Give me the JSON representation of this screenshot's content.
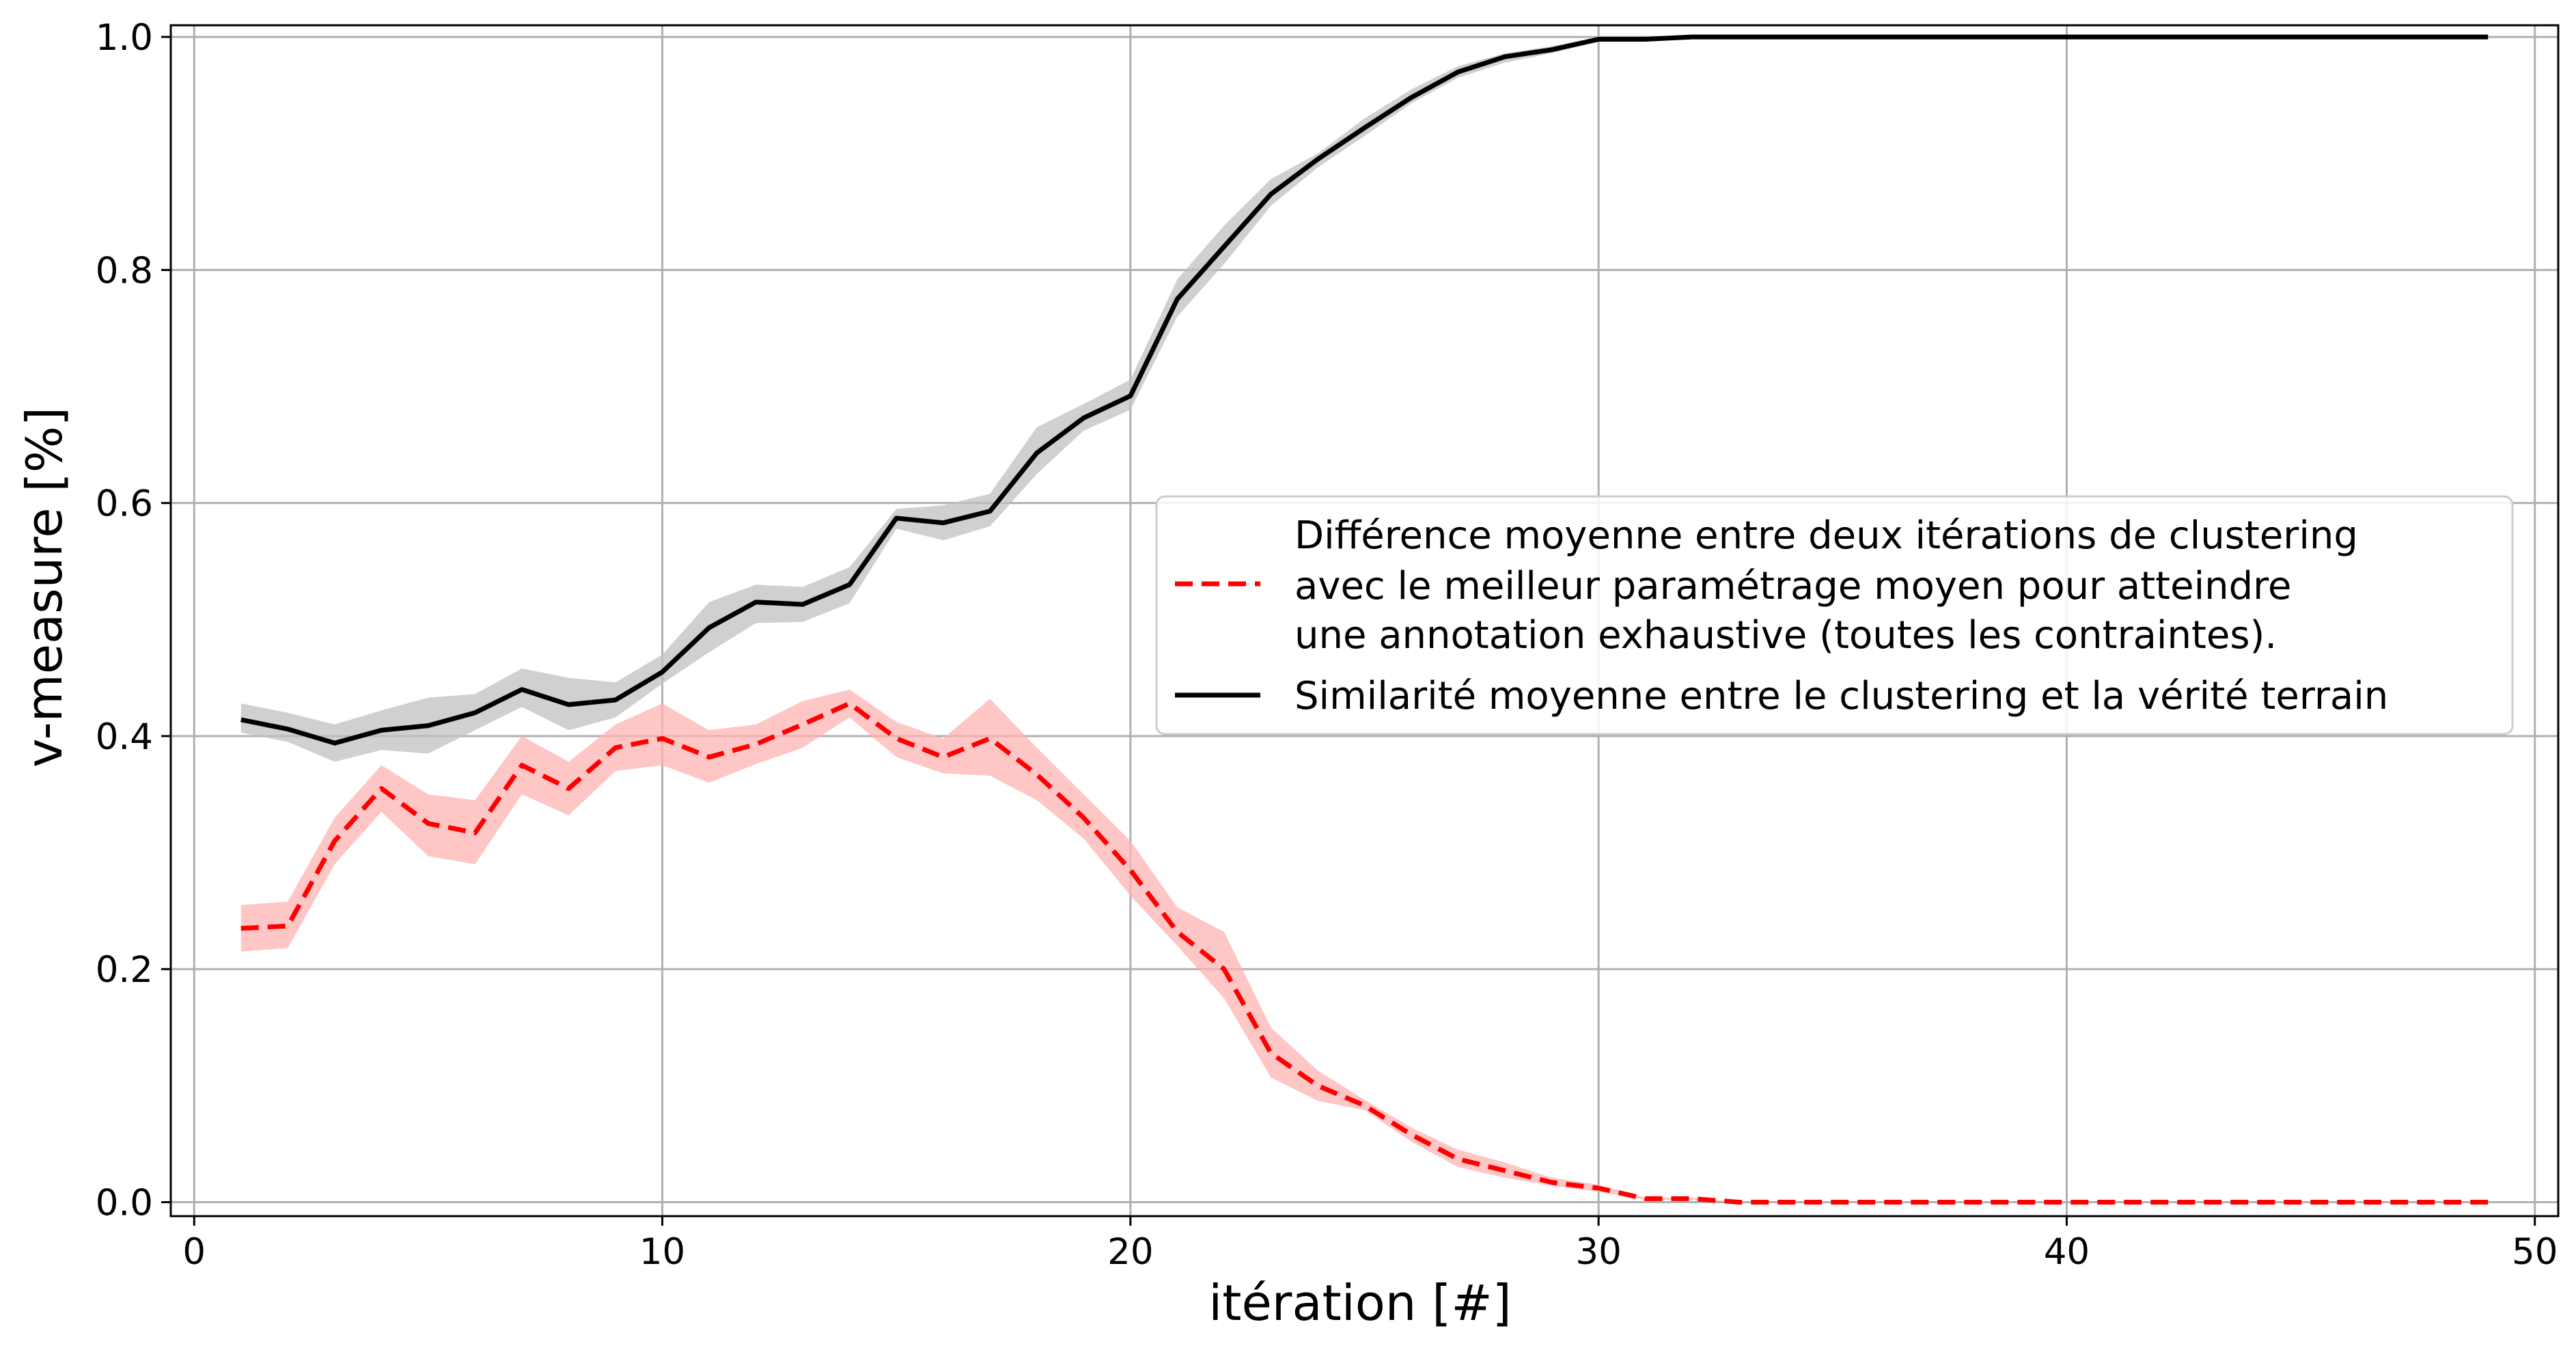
{
  "chart_data": {
    "type": "line",
    "xlabel": "itération [#]",
    "ylabel": "v-measure [%]",
    "xlim": [
      -0.5,
      50.5
    ],
    "ylim": [
      -0.012,
      1.01
    ],
    "xticks": [
      0,
      10,
      20,
      30,
      40,
      50
    ],
    "yticks": [
      0.0,
      0.2,
      0.4,
      0.6,
      0.8,
      1.0
    ],
    "xtick_labels": [
      "0",
      "10",
      "20",
      "30",
      "40",
      "50"
    ],
    "ytick_labels": [
      "0.0",
      "0.2",
      "0.4",
      "0.6",
      "0.8",
      "1.0"
    ],
    "grid": true,
    "legend_position": "center-right",
    "x": [
      1,
      2,
      3,
      4,
      5,
      6,
      7,
      8,
      9,
      10,
      11,
      12,
      13,
      14,
      15,
      16,
      17,
      18,
      19,
      20,
      21,
      22,
      23,
      24,
      25,
      26,
      27,
      28,
      29,
      30,
      31,
      32,
      33,
      34,
      35,
      36,
      37,
      38,
      39,
      40,
      41,
      42,
      43,
      44,
      45,
      46,
      47,
      48,
      49
    ],
    "series": [
      {
        "name": "Différence moyenne entre deux itérations de clustering avec le meilleur paramétrage moyen pour atteindre une annotation exhaustive (toutes les contraintes).",
        "legend_lines": [
          "Différence moyenne entre deux itérations de clustering",
          "avec le meilleur paramétrage moyen pour atteindre",
          "une annotation exhaustive (toutes les contraintes)."
        ],
        "color": "#ff0000",
        "band_color": "#ffb3b3",
        "style": "dashed",
        "values": [
          0.235,
          0.237,
          0.31,
          0.355,
          0.325,
          0.317,
          0.375,
          0.355,
          0.39,
          0.398,
          0.382,
          0.393,
          0.41,
          0.428,
          0.398,
          0.382,
          0.398,
          0.367,
          0.33,
          0.285,
          0.232,
          0.2,
          0.128,
          0.1,
          0.083,
          0.058,
          0.037,
          0.027,
          0.017,
          0.012,
          0.003,
          0.003,
          0.0,
          0.0,
          0.0,
          0.0,
          0.0,
          0.0,
          0.0,
          0.0,
          0.0,
          0.0,
          0.0,
          0.0,
          0.0,
          0.0,
          0.0,
          0.0,
          0.0
        ],
        "lower": [
          0.215,
          0.218,
          0.29,
          0.335,
          0.297,
          0.29,
          0.35,
          0.332,
          0.37,
          0.375,
          0.36,
          0.376,
          0.39,
          0.416,
          0.382,
          0.368,
          0.366,
          0.345,
          0.312,
          0.263,
          0.22,
          0.175,
          0.107,
          0.087,
          0.079,
          0.052,
          0.03,
          0.021,
          0.014,
          0.009,
          0.002,
          0.002,
          0.0,
          0.0,
          0.0,
          0.0,
          0.0,
          0.0,
          0.0,
          0.0,
          0.0,
          0.0,
          0.0,
          0.0,
          0.0,
          0.0,
          0.0,
          0.0,
          0.0
        ],
        "upper": [
          0.255,
          0.258,
          0.33,
          0.375,
          0.35,
          0.345,
          0.4,
          0.378,
          0.41,
          0.428,
          0.405,
          0.41,
          0.43,
          0.44,
          0.412,
          0.398,
          0.432,
          0.39,
          0.35,
          0.31,
          0.253,
          0.232,
          0.15,
          0.113,
          0.088,
          0.064,
          0.045,
          0.034,
          0.021,
          0.015,
          0.004,
          0.004,
          0.0,
          0.0,
          0.0,
          0.0,
          0.0,
          0.0,
          0.0,
          0.0,
          0.0,
          0.0,
          0.0,
          0.0,
          0.0,
          0.0,
          0.0,
          0.0,
          0.0
        ]
      },
      {
        "name": "Similarité moyenne entre le clustering et la vérité terrain",
        "legend_lines": [
          "Similarité moyenne entre le clustering et la vérité terrain"
        ],
        "color": "#000000",
        "band_color": "#c0c0c0",
        "style": "solid",
        "values": [
          0.414,
          0.406,
          0.394,
          0.405,
          0.409,
          0.42,
          0.44,
          0.427,
          0.431,
          0.455,
          0.493,
          0.515,
          0.513,
          0.53,
          0.587,
          0.583,
          0.593,
          0.643,
          0.673,
          0.692,
          0.775,
          0.82,
          0.865,
          0.895,
          0.922,
          0.948,
          0.97,
          0.983,
          0.989,
          0.998,
          0.998,
          1.0,
          1.0,
          1.0,
          1.0,
          1.0,
          1.0,
          1.0,
          1.0,
          1.0,
          1.0,
          1.0,
          1.0,
          1.0,
          1.0,
          1.0,
          1.0,
          1.0,
          1.0
        ],
        "lower": [
          0.403,
          0.395,
          0.378,
          0.388,
          0.385,
          0.405,
          0.425,
          0.405,
          0.416,
          0.445,
          0.472,
          0.497,
          0.498,
          0.514,
          0.578,
          0.568,
          0.58,
          0.625,
          0.662,
          0.68,
          0.76,
          0.805,
          0.855,
          0.888,
          0.915,
          0.943,
          0.965,
          0.978,
          0.986,
          0.996,
          0.997,
          1.0,
          1.0,
          1.0,
          1.0,
          1.0,
          1.0,
          1.0,
          1.0,
          1.0,
          1.0,
          1.0,
          1.0,
          1.0,
          1.0,
          1.0,
          1.0,
          1.0,
          1.0
        ],
        "upper": [
          0.428,
          0.42,
          0.41,
          0.422,
          0.433,
          0.436,
          0.458,
          0.45,
          0.446,
          0.47,
          0.515,
          0.53,
          0.528,
          0.545,
          0.595,
          0.598,
          0.608,
          0.665,
          0.685,
          0.706,
          0.792,
          0.838,
          0.878,
          0.9,
          0.93,
          0.955,
          0.975,
          0.986,
          0.992,
          1.0,
          1.0,
          1.0,
          1.0,
          1.0,
          1.0,
          1.0,
          1.0,
          1.0,
          1.0,
          1.0,
          1.0,
          1.0,
          1.0,
          1.0,
          1.0,
          1.0,
          1.0,
          1.0,
          1.0
        ]
      }
    ]
  }
}
